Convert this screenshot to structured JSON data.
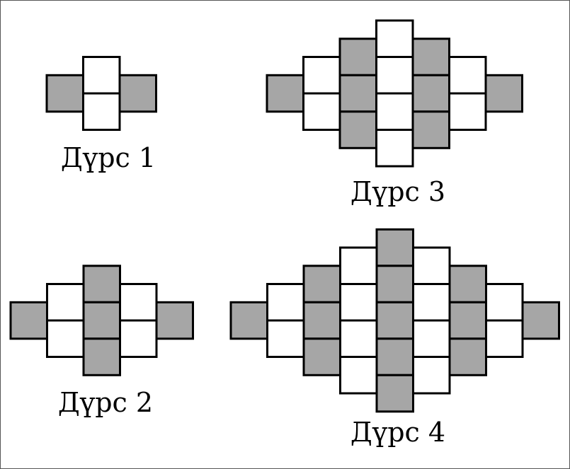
{
  "colors": {
    "shaded": "#a6a6a6",
    "plain": "#ffffff",
    "stroke": "#000000",
    "frame": "#555555"
  },
  "figures": [
    {
      "label": "Дүрс 1",
      "columns": [
        {
          "cells": [
            "shaded"
          ]
        },
        {
          "cells": [
            "plain",
            "plain"
          ]
        },
        {
          "cells": [
            "shaded"
          ]
        }
      ]
    },
    {
      "label": "Дүрс 2",
      "columns": [
        {
          "cells": [
            "shaded"
          ]
        },
        {
          "cells": [
            "plain",
            "plain"
          ]
        },
        {
          "cells": [
            "shaded",
            "shaded",
            "shaded"
          ]
        },
        {
          "cells": [
            "plain",
            "plain"
          ]
        },
        {
          "cells": [
            "shaded"
          ]
        }
      ]
    },
    {
      "label": "Дүрс 3",
      "columns": [
        {
          "cells": [
            "shaded"
          ]
        },
        {
          "cells": [
            "plain",
            "plain"
          ]
        },
        {
          "cells": [
            "shaded",
            "shaded",
            "shaded"
          ]
        },
        {
          "cells": [
            "plain",
            "plain",
            "plain",
            "plain"
          ]
        },
        {
          "cells": [
            "shaded",
            "shaded",
            "shaded"
          ]
        },
        {
          "cells": [
            "plain",
            "plain"
          ]
        },
        {
          "cells": [
            "shaded"
          ]
        }
      ]
    },
    {
      "label": "Дүрс 4",
      "columns": [
        {
          "cells": [
            "shaded"
          ]
        },
        {
          "cells": [
            "plain",
            "plain"
          ]
        },
        {
          "cells": [
            "shaded",
            "shaded",
            "shaded"
          ]
        },
        {
          "cells": [
            "plain",
            "plain",
            "plain",
            "plain"
          ]
        },
        {
          "cells": [
            "shaded",
            "shaded",
            "shaded",
            "shaded",
            "shaded"
          ]
        },
        {
          "cells": [
            "plain",
            "plain",
            "plain",
            "plain"
          ]
        },
        {
          "cells": [
            "shaded",
            "shaded",
            "shaded"
          ]
        },
        {
          "cells": [
            "plain",
            "plain"
          ]
        },
        {
          "cells": [
            "shaded"
          ]
        }
      ]
    }
  ]
}
